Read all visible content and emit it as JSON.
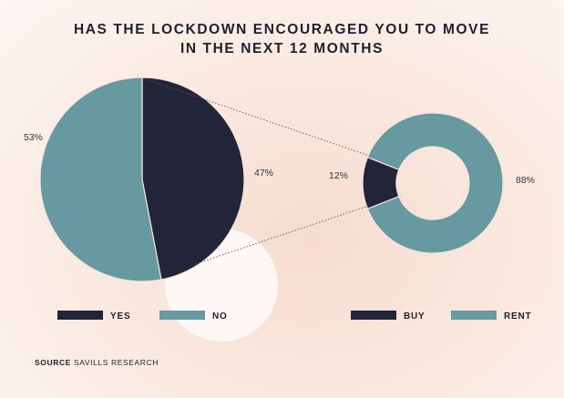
{
  "title_line1": "HAS THE LOCKDOWN ENCOURAGED YOU TO MOVE",
  "title_line2": "IN THE NEXT 12 MONTHS",
  "source_label": "SOURCE",
  "source_text": "SAVILLS RESEARCH",
  "colors": {
    "dark": "#22253a",
    "teal": "#6699a0",
    "circle": "#fdf8f5"
  },
  "chart_data": [
    {
      "type": "pie",
      "slices": [
        {
          "name": "YES",
          "value": 47,
          "label": "47%"
        },
        {
          "name": "NO",
          "value": 53,
          "label": "53%"
        }
      ],
      "legend": [
        "YES",
        "NO"
      ]
    },
    {
      "type": "pie",
      "subtype": "donut",
      "slices": [
        {
          "name": "BUY",
          "value": 12,
          "label": "12%"
        },
        {
          "name": "RENT",
          "value": 88,
          "label": "88%"
        }
      ],
      "legend": [
        "BUY",
        "RENT"
      ]
    }
  ]
}
